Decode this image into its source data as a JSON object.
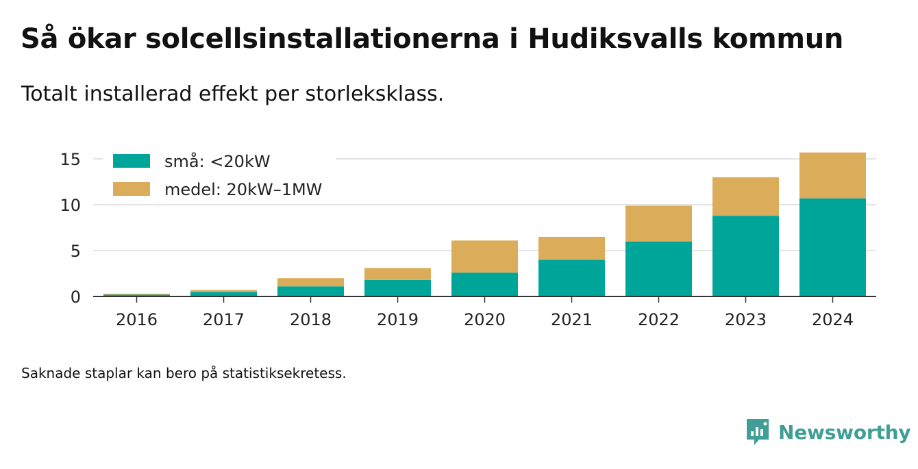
{
  "title": "Så ökar solcellsinstallationerna i Hudiksvalls kommun",
  "subtitle": "Totalt installerad effekt per storleksklass.",
  "footnote": "Saknade staplar kan bero på statistiksekretess.",
  "brand": {
    "name": "Newsworthy",
    "icon": "newsworthy-logo-icon"
  },
  "chart_data": {
    "type": "bar",
    "stacked": true,
    "categories": [
      "2016",
      "2017",
      "2018",
      "2019",
      "2020",
      "2021",
      "2022",
      "2023",
      "2024"
    ],
    "series": [
      {
        "name": "små: <20kW",
        "color": "#00a59a",
        "values": [
          0.2,
          0.5,
          1.1,
          1.8,
          2.6,
          4.0,
          6.0,
          8.8,
          10.7
        ]
      },
      {
        "name": "medel: 20kW–1MW",
        "color": "#dbac5a",
        "values": [
          0.1,
          0.2,
          0.9,
          1.3,
          3.5,
          2.5,
          3.9,
          4.2,
          5.0
        ]
      }
    ],
    "ylim": [
      0,
      15.9
    ],
    "yticks": [
      0,
      5,
      10,
      15
    ],
    "grid": true,
    "legend": "top-left",
    "xlabel": "",
    "ylabel": ""
  }
}
